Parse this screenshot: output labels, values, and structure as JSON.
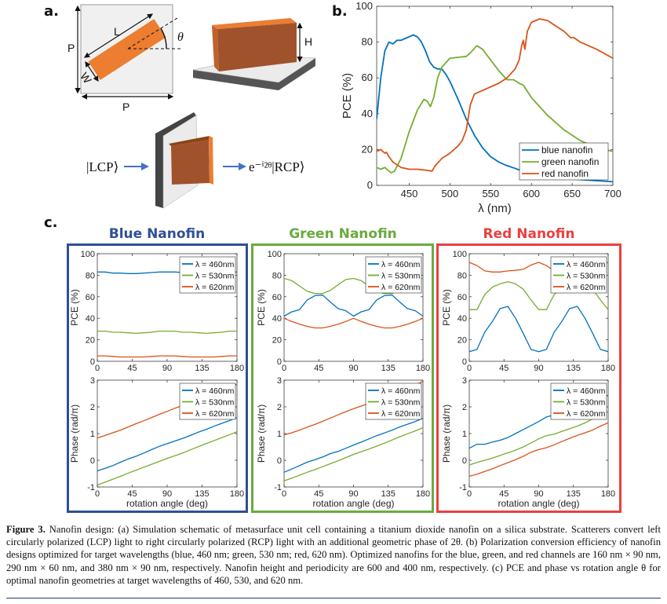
{
  "panel_labels": {
    "a": "a.",
    "b": "b.",
    "c": "c."
  },
  "schematic": {
    "period_label_vertical": "P",
    "period_label_horizontal": "P",
    "length_label": "L",
    "width_label": "W",
    "angle_label": "θ",
    "height_label": "H",
    "input_state": "|LCP⟩",
    "output_state": "e⁻ⁱ²ᶿ|RCP⟩",
    "nanofin_color": "#ED7D31",
    "nanofin_side_color": "#A0522D",
    "arrow_color": "#4472C4"
  },
  "panel_c": {
    "titles": [
      {
        "text": "Blue Nanofin",
        "color": "#2F4F96"
      },
      {
        "text": "Green Nanofin",
        "color": "#6AAA3F"
      },
      {
        "text": "Red Nanofin",
        "color": "#E8413F"
      }
    ]
  },
  "chart_data": [
    {
      "type": "line",
      "xlabel": "λ (nm)",
      "ylabel": "PCE (%)",
      "xlim": [
        410,
        700
      ],
      "ylim": [
        0,
        100
      ],
      "xticks": [
        450,
        500,
        550,
        600,
        650,
        700
      ],
      "yticks": [
        0,
        20,
        40,
        60,
        80,
        100
      ],
      "grid": false,
      "legend": "bottom-right",
      "series": [
        {
          "name": "blue nanofin",
          "color": "#0072BD",
          "x": [
            410,
            415,
            420,
            425,
            430,
            435,
            440,
            445,
            450,
            455,
            460,
            465,
            470,
            475,
            480,
            485,
            490,
            495,
            500,
            510,
            520,
            530,
            540,
            550,
            560,
            570,
            580,
            600,
            620,
            650,
            700
          ],
          "y": [
            37,
            60,
            75,
            80,
            79,
            81,
            81,
            82,
            83,
            84,
            83,
            80,
            75,
            69,
            66,
            65,
            65,
            62,
            58,
            48,
            37,
            28,
            21,
            16,
            13,
            11,
            9.5,
            6,
            4.5,
            3.5,
            2
          ]
        },
        {
          "name": "green nanofin",
          "color": "#77AC30",
          "x": [
            410,
            415,
            420,
            425,
            428,
            432,
            440,
            450,
            460,
            468,
            472,
            476,
            480,
            485,
            490,
            500,
            510,
            520,
            525,
            533,
            540,
            550,
            560,
            570,
            578,
            585,
            590,
            600,
            620,
            640,
            660,
            680,
            700
          ],
          "y": [
            10,
            9,
            10,
            8,
            7,
            8,
            15,
            30,
            42,
            48,
            47,
            44,
            49,
            60,
            66,
            71,
            71.5,
            72,
            74,
            78,
            76,
            70,
            64,
            59,
            59,
            57,
            56,
            49,
            39,
            31,
            25,
            21,
            19
          ]
        },
        {
          "name": "red nanofin",
          "color": "#D95319",
          "x": [
            410,
            415,
            420,
            422,
            425,
            430,
            440,
            450,
            460,
            470,
            478,
            482,
            490,
            500,
            510,
            515,
            520,
            525,
            530,
            540,
            550,
            560,
            570,
            580,
            585,
            588,
            590,
            592,
            595,
            600,
            610,
            620,
            630,
            640,
            648,
            652,
            660,
            680,
            700
          ],
          "y": [
            19,
            20,
            18,
            18.5,
            16,
            13,
            10,
            9,
            9,
            8.5,
            8,
            11,
            15,
            18,
            22,
            25,
            31,
            45,
            51,
            53,
            55,
            57,
            60,
            65,
            70,
            78,
            81,
            76,
            86,
            91,
            93,
            92,
            89,
            86,
            82.5,
            82.5,
            80,
            76,
            71
          ]
        }
      ]
    },
    {
      "type": "line",
      "panel": "Blue Nanofin",
      "xlabel": "",
      "ylabel": "PCE (%)",
      "xlim": [
        0,
        180
      ],
      "ylim": [
        0,
        100
      ],
      "xticks": [
        0,
        45,
        90,
        135,
        180
      ],
      "yticks": [
        0,
        20,
        40,
        60,
        80,
        100
      ],
      "grid": false,
      "legend": "top-right",
      "x": [
        0,
        10,
        20,
        30,
        40,
        50,
        60,
        70,
        80,
        90,
        100,
        110,
        120,
        130,
        140,
        150,
        160,
        170,
        180
      ],
      "series": [
        {
          "name": "λ = 460nm",
          "color": "#0072BD",
          "y": [
            83,
            83,
            82,
            82,
            81.5,
            81.5,
            82,
            82.5,
            83,
            83,
            83,
            82.5,
            82,
            81.5,
            81.5,
            82,
            82.5,
            83,
            83
          ]
        },
        {
          "name": "λ = 530nm",
          "color": "#77AC30",
          "y": [
            28,
            28,
            27,
            27,
            26.5,
            26,
            26.5,
            27,
            28,
            28,
            28,
            27,
            27,
            26.5,
            26,
            26.5,
            27,
            28,
            28
          ]
        },
        {
          "name": "λ = 620nm",
          "color": "#D95319",
          "y": [
            5,
            5,
            4.5,
            4,
            4,
            4,
            4,
            4.5,
            5,
            5,
            5,
            4.5,
            4,
            4,
            4,
            4,
            4.5,
            5,
            5
          ]
        }
      ]
    },
    {
      "type": "line",
      "panel": "Blue Nanofin",
      "xlabel": "rotation angle (deg)",
      "ylabel": "Phase (rad/π)",
      "xlim": [
        0,
        180
      ],
      "ylim": [
        -1,
        3
      ],
      "xticks": [
        0,
        45,
        90,
        135,
        180
      ],
      "yticks": [
        -1,
        0,
        1,
        2,
        3
      ],
      "grid": false,
      "legend": "top-right",
      "x": [
        0,
        10,
        20,
        30,
        40,
        50,
        60,
        70,
        80,
        90,
        100,
        110,
        120,
        130,
        140,
        150,
        160,
        170,
        180
      ],
      "series": [
        {
          "name": "λ = 460nm",
          "color": "#0072BD",
          "y": [
            -0.4,
            -0.3,
            -0.2,
            -0.07,
            0.05,
            0.15,
            0.27,
            0.4,
            0.52,
            0.62,
            0.72,
            0.82,
            0.93,
            1.05,
            1.15,
            1.27,
            1.38,
            1.48,
            1.6
          ]
        },
        {
          "name": "λ = 530nm",
          "color": "#77AC30",
          "y": [
            -0.93,
            -0.82,
            -0.71,
            -0.6,
            -0.48,
            -0.37,
            -0.26,
            -0.15,
            -0.04,
            0.07,
            0.17,
            0.27,
            0.39,
            0.51,
            0.62,
            0.73,
            0.84,
            0.95,
            1.07
          ]
        },
        {
          "name": "λ = 620nm",
          "color": "#D95319",
          "y": [
            0.83,
            0.93,
            1.03,
            1.13,
            1.25,
            1.37,
            1.48,
            1.6,
            1.72,
            1.83,
            1.95,
            2.05,
            2.15,
            2.25,
            2.35,
            2.46,
            2.57,
            2.7,
            2.85
          ]
        }
      ]
    },
    {
      "type": "line",
      "panel": "Green Nanofin",
      "xlabel": "",
      "ylabel": "PCE (%)",
      "xlim": [
        0,
        180
      ],
      "ylim": [
        0,
        100
      ],
      "xticks": [
        0,
        45,
        90,
        135,
        180
      ],
      "yticks": [
        0,
        20,
        40,
        60,
        80,
        100
      ],
      "grid": false,
      "legend": "top-right",
      "x": [
        0,
        10,
        20,
        30,
        40,
        50,
        60,
        70,
        80,
        90,
        100,
        110,
        120,
        130,
        140,
        150,
        160,
        170,
        180
      ],
      "series": [
        {
          "name": "λ = 460nm",
          "color": "#0072BD",
          "y": [
            42,
            46,
            48,
            57,
            61,
            61.5,
            55,
            49,
            47,
            42,
            46,
            48,
            57,
            61,
            61.5,
            55,
            49,
            47,
            42
          ]
        },
        {
          "name": "λ = 530nm",
          "color": "#77AC30",
          "y": [
            77,
            75,
            70,
            65,
            63,
            63,
            66,
            71,
            76,
            77,
            75,
            70,
            65,
            63,
            63,
            66,
            71,
            76,
            77
          ]
        },
        {
          "name": "λ = 620nm",
          "color": "#D95319",
          "y": [
            40,
            37,
            34.5,
            32.5,
            31,
            31,
            32.5,
            34.5,
            37,
            40,
            37,
            34.5,
            32.5,
            31,
            31,
            32.5,
            34.5,
            37,
            40
          ]
        }
      ]
    },
    {
      "type": "line",
      "panel": "Green Nanofin",
      "xlabel": "rotation angle (deg)",
      "ylabel": "Phase (rad/π)",
      "xlim": [
        0,
        180
      ],
      "ylim": [
        -1,
        3
      ],
      "xticks": [
        0,
        45,
        90,
        135,
        180
      ],
      "yticks": [
        -1,
        0,
        1,
        2,
        3
      ],
      "grid": false,
      "legend": "top-right",
      "x": [
        0,
        10,
        20,
        30,
        40,
        50,
        60,
        70,
        80,
        90,
        100,
        110,
        120,
        130,
        140,
        150,
        160,
        170,
        180
      ],
      "series": [
        {
          "name": "λ = 460nm",
          "color": "#0072BD",
          "y": [
            -0.45,
            -0.33,
            -0.2,
            -0.07,
            0.02,
            0.12,
            0.25,
            0.33,
            0.45,
            0.57,
            0.68,
            0.8,
            0.92,
            1.02,
            1.13,
            1.25,
            1.35,
            1.45,
            1.57
          ]
        },
        {
          "name": "λ = 530nm",
          "color": "#77AC30",
          "y": [
            -0.77,
            -0.67,
            -0.56,
            -0.45,
            -0.35,
            -0.24,
            -0.13,
            -0.02,
            0.1,
            0.22,
            0.32,
            0.42,
            0.53,
            0.64,
            0.76,
            0.88,
            0.99,
            1.1,
            1.22
          ]
        },
        {
          "name": "λ = 620nm",
          "color": "#D95319",
          "y": [
            0.95,
            1.03,
            1.13,
            1.24,
            1.34,
            1.46,
            1.58,
            1.7,
            1.82,
            1.93,
            2.03,
            2.13,
            2.23,
            2.35,
            2.46,
            2.58,
            2.7,
            2.83,
            2.95
          ]
        }
      ]
    },
    {
      "type": "line",
      "panel": "Red Nanofin",
      "xlabel": "",
      "ylabel": "PCE (%)",
      "xlim": [
        0,
        180
      ],
      "ylim": [
        0,
        100
      ],
      "xticks": [
        0,
        45,
        90,
        135,
        180
      ],
      "yticks": [
        0,
        20,
        40,
        60,
        80,
        100
      ],
      "grid": false,
      "legend": "top-right",
      "x": [
        0,
        10,
        20,
        30,
        40,
        50,
        60,
        70,
        80,
        90,
        100,
        110,
        120,
        130,
        140,
        150,
        160,
        170,
        180
      ],
      "series": [
        {
          "name": "λ = 460nm",
          "color": "#0072BD",
          "y": [
            9,
            11,
            27,
            37,
            49,
            51,
            40,
            26,
            11,
            9,
            11,
            27,
            37,
            49,
            51,
            40,
            26,
            11,
            9
          ]
        },
        {
          "name": "λ = 530nm",
          "color": "#77AC30",
          "y": [
            48,
            48,
            62,
            69,
            72,
            74,
            72,
            67,
            57,
            48,
            48,
            62,
            69,
            72,
            74,
            72,
            67,
            57,
            48
          ]
        },
        {
          "name": "λ = 620nm",
          "color": "#D95319",
          "y": [
            92,
            89,
            84,
            83,
            83,
            84,
            84.5,
            85.5,
            89.5,
            92,
            89,
            84,
            83,
            83,
            84,
            84.5,
            85.5,
            89.5,
            92
          ]
        }
      ]
    },
    {
      "type": "line",
      "panel": "Red Nanofin",
      "xlabel": "rotation angle (deg)",
      "ylabel": "Phase (rad/π)",
      "xlim": [
        0,
        180
      ],
      "ylim": [
        -1,
        3
      ],
      "xticks": [
        0,
        45,
        90,
        135,
        180
      ],
      "yticks": [
        -1,
        0,
        1,
        2,
        3
      ],
      "grid": false,
      "legend": "top-right",
      "x": [
        0,
        10,
        20,
        30,
        40,
        50,
        60,
        70,
        80,
        90,
        100,
        110,
        120,
        130,
        140,
        150,
        160,
        170,
        180
      ],
      "series": [
        {
          "name": "λ = 460nm",
          "color": "#0072BD",
          "y": [
            0.45,
            0.6,
            0.6,
            0.68,
            0.75,
            0.85,
            1.0,
            1.15,
            1.3,
            1.45,
            1.62,
            1.7,
            1.82,
            1.95,
            2.05,
            2.15,
            2.25,
            2.35,
            2.43
          ]
        },
        {
          "name": "λ = 530nm",
          "color": "#77AC30",
          "y": [
            -0.18,
            -0.08,
            0.0,
            0.08,
            0.18,
            0.28,
            0.38,
            0.5,
            0.65,
            0.8,
            0.92,
            0.98,
            1.08,
            1.18,
            1.28,
            1.4,
            1.55,
            1.68,
            1.82
          ]
        },
        {
          "name": "λ = 620nm",
          "color": "#D95319",
          "y": [
            -0.6,
            -0.52,
            -0.42,
            -0.32,
            -0.2,
            -0.09,
            0.02,
            0.15,
            0.3,
            0.4,
            0.47,
            0.58,
            0.7,
            0.82,
            0.93,
            1.03,
            1.13,
            1.28,
            1.4
          ]
        }
      ]
    }
  ],
  "caption": {
    "label": "Figure 3.",
    "text": "Nanofin design: (a) Simulation schematic of metasurface unit cell containing a titanium dioxide nanofin on a silica substrate. Scatterers convert left circularly polarized (LCP) light to right circularly polarized (RCP) light with an additional geometric phase of 2θ. (b) Polarization conversion efficiency of nanofin designs optimized for target wavelengths (blue, 460 nm; green, 530 nm; red, 620 nm). Optimized nanofins for the blue, green, and red channels are 160 nm × 90 nm, 290 nm × 60 nm, and 380 nm × 90 nm, respectively. Nanofin height and periodicity are 600 and 400 nm, respectively. (c) PCE and phase vs rotation angle θ for optimal nanofin geometries at target wavelengths of 460, 530, and 620 nm."
  }
}
